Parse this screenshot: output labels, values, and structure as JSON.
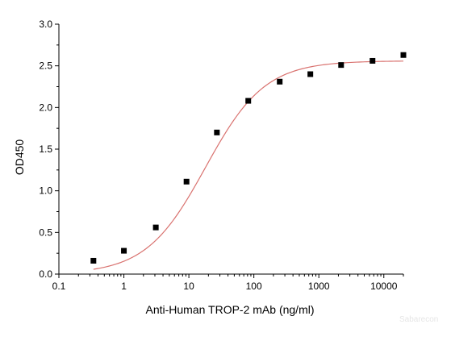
{
  "chart_data": {
    "type": "scatter",
    "title": "",
    "xlabel": "Anti-Human TROP-2 mAb (ng/ml)",
    "ylabel": "OD450",
    "x_scale": "log",
    "xlim": [
      0.1,
      20000
    ],
    "ylim": [
      0.0,
      3.0
    ],
    "x_ticks": [
      0.1,
      1,
      10,
      100,
      1000,
      10000
    ],
    "x_tick_labels": [
      "0.1",
      "1",
      "10",
      "100",
      "1000",
      "10000"
    ],
    "y_ticks": [
      0.0,
      0.5,
      1.0,
      1.5,
      2.0,
      2.5,
      3.0
    ],
    "y_tick_labels": [
      "0.0",
      "0.5",
      "1.0",
      "1.5",
      "2.0",
      "2.5",
      "3.0"
    ],
    "grid": false,
    "series": [
      {
        "marker": "square",
        "color": "#000000",
        "x": [
          0.34,
          1.0,
          3.1,
          9.2,
          27,
          82,
          250,
          740,
          2200,
          6700,
          20000
        ],
        "y": [
          0.16,
          0.28,
          0.56,
          1.11,
          1.7,
          2.08,
          2.31,
          2.4,
          2.51,
          2.56,
          2.63
        ]
      }
    ],
    "fit": {
      "type": "4PL",
      "color": "#d9726f",
      "bottom": 0.0,
      "top": 2.56,
      "ec50": 18,
      "hill": 0.95,
      "x_range": [
        0.34,
        20000
      ]
    }
  },
  "watermark": "Sabarecon"
}
